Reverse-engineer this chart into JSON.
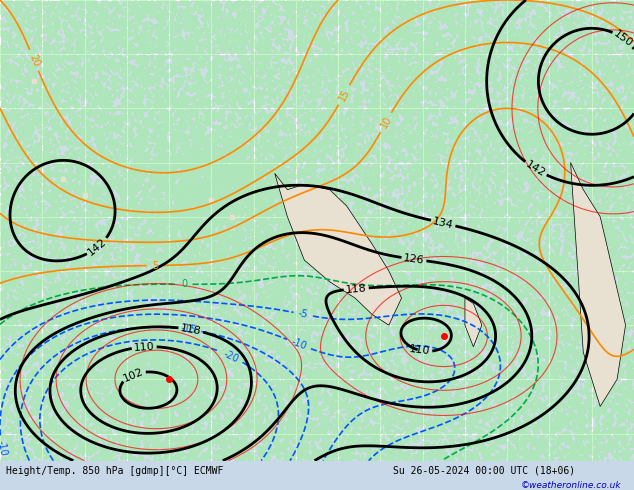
{
  "title_left": "Height/Temp. 850 hPa [gdmp][°C] ECMWF",
  "title_right": "Su 26-05-2024 00:00 UTC (18+06)",
  "watermark": "©weatheronline.co.uk",
  "background_color": "#d8e8f0",
  "land_color": "#e8e8e8",
  "grid_color": "#ffffff",
  "text_color": "#000000",
  "bottom_label_color": "#0000aa",
  "figsize": [
    6.34,
    4.9
  ],
  "dpi": 100
}
